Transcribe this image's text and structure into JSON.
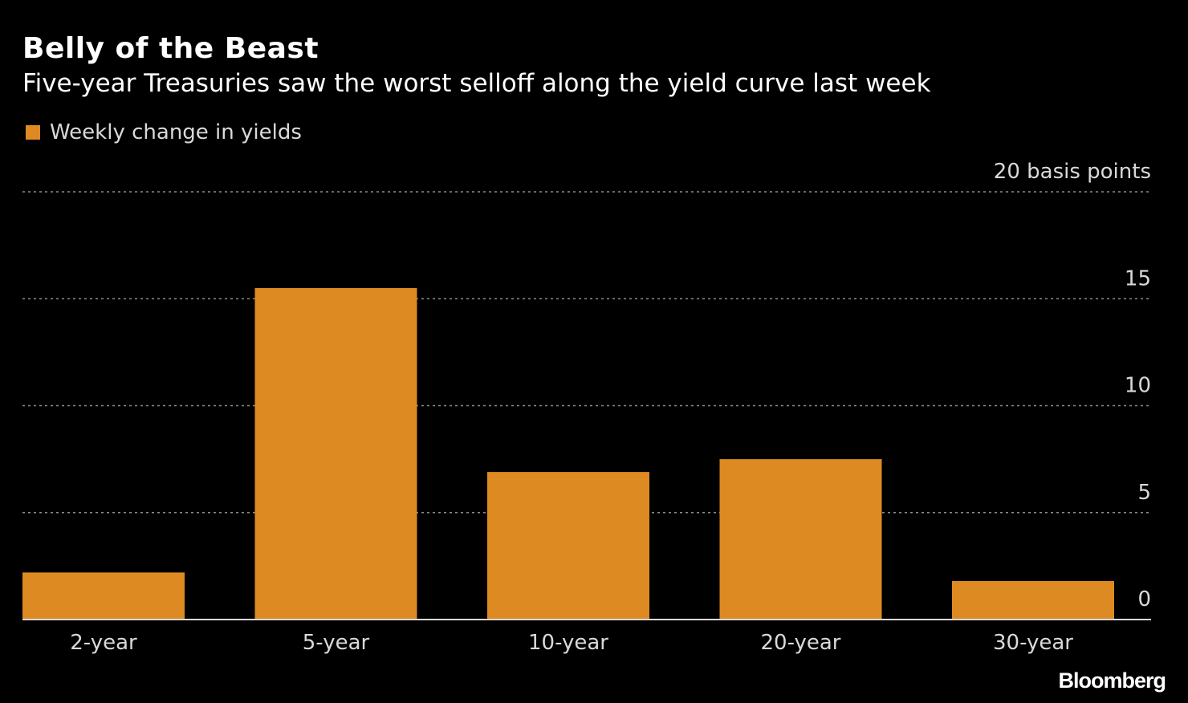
{
  "title": "Belly of the Beast",
  "subtitle": "Five-year Treasuries saw the worst selloff along the yield curve last week",
  "branding": "Bloomberg",
  "colors": {
    "bar": "#dd8a22",
    "grid": "#8c8c8c",
    "axis": "#d9d9d9"
  },
  "chart_data": {
    "type": "bar",
    "categories": [
      "2-year",
      "5-year",
      "10-year",
      "20-year",
      "30-year"
    ],
    "series": [
      {
        "name": "Weekly change in yields",
        "values": [
          2.2,
          15.5,
          6.9,
          7.5,
          1.8
        ]
      }
    ],
    "ylabel": "",
    "y_unit_label": "basis points",
    "yticks": [
      0,
      5,
      10,
      15,
      20
    ],
    "ytick_labels": [
      "0",
      "5",
      "10",
      "15",
      "20 basis points"
    ],
    "ylim": [
      0,
      20
    ],
    "grid": true,
    "grid_style": "dotted",
    "legend_position": "top-left"
  }
}
